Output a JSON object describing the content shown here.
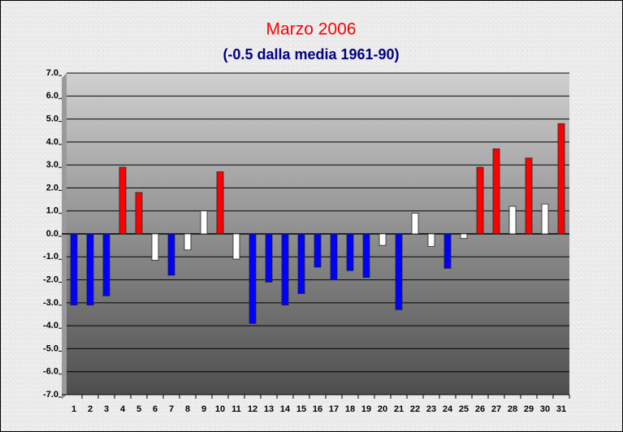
{
  "chart_data": {
    "type": "bar",
    "title": "Marzo 2006",
    "subtitle": "(-0.5 dalla media 1961-90)",
    "categories": [
      "1",
      "2",
      "3",
      "4",
      "5",
      "6",
      "7",
      "8",
      "9",
      "10",
      "11",
      "12",
      "13",
      "14",
      "15",
      "16",
      "17",
      "18",
      "19",
      "20",
      "21",
      "22",
      "23",
      "24",
      "25",
      "26",
      "27",
      "28",
      "29",
      "30",
      "31"
    ],
    "values": [
      -3.1,
      -3.1,
      -2.7,
      2.9,
      1.8,
      -1.15,
      -1.8,
      -0.7,
      1.0,
      2.7,
      -1.1,
      -3.9,
      -2.1,
      -3.1,
      -2.6,
      -1.45,
      -2.0,
      -1.6,
      -1.9,
      -0.5,
      -3.3,
      0.9,
      -0.55,
      -1.5,
      -0.2,
      2.9,
      3.7,
      1.2,
      3.3,
      1.3,
      4.8
    ],
    "colors": [
      "#0000ff",
      "#0000ff",
      "#0000ff",
      "#ff0000",
      "#ff0000",
      "#ffffff",
      "#0000ff",
      "#ffffff",
      "#ffffff",
      "#ff0000",
      "#ffffff",
      "#0000ff",
      "#0000ff",
      "#0000ff",
      "#0000ff",
      "#0000ff",
      "#0000ff",
      "#0000ff",
      "#0000ff",
      "#ffffff",
      "#0000ff",
      "#ffffff",
      "#ffffff",
      "#0000ff",
      "#ffffff",
      "#ff0000",
      "#ff0000",
      "#ffffff",
      "#ff0000",
      "#ffffff",
      "#ff0000"
    ],
    "ylim": [
      -7,
      7
    ],
    "yticks": [
      {
        "value": 7,
        "label": "7.0"
      },
      {
        "value": 6,
        "label": "6.0"
      },
      {
        "value": 5,
        "label": "5.0"
      },
      {
        "value": 4,
        "label": "4.0"
      },
      {
        "value": 3,
        "label": "3.0"
      },
      {
        "value": 2,
        "label": "2.0"
      },
      {
        "value": 1,
        "label": "1.0"
      },
      {
        "value": 0,
        "label": "0.0"
      },
      {
        "value": -1,
        "label": "-1.0"
      },
      {
        "value": -2,
        "label": "-2.0"
      },
      {
        "value": -3,
        "label": "-3.0"
      },
      {
        "value": -4,
        "label": "-4.0"
      },
      {
        "value": -5,
        "label": "-5.0"
      },
      {
        "value": -6,
        "label": "-6.0"
      },
      {
        "value": -7,
        "label": "-7.0"
      }
    ],
    "grid": true
  }
}
